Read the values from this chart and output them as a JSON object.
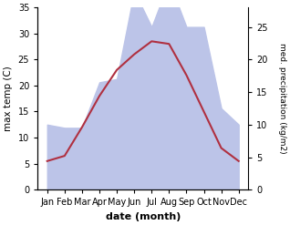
{
  "months": [
    "Jan",
    "Feb",
    "Mar",
    "Apr",
    "May",
    "Jun",
    "Jul",
    "Aug",
    "Sep",
    "Oct",
    "Nov",
    "Dec"
  ],
  "month_positions": [
    0,
    1,
    2,
    3,
    4,
    5,
    6,
    7,
    8,
    9,
    10,
    11
  ],
  "max_temp": [
    5.5,
    6.5,
    12.0,
    18.0,
    23.0,
    26.0,
    28.5,
    28.0,
    22.0,
    15.0,
    8.0,
    5.5
  ],
  "precipitation": [
    10.0,
    9.5,
    9.5,
    16.5,
    17.0,
    30.5,
    25.0,
    32.0,
    25.0,
    25.0,
    12.5,
    10.0
  ],
  "temp_color": "#b03040",
  "precip_fill_color": "#bcc4e8",
  "temp_ylim": [
    0,
    35
  ],
  "precip_ylim": [
    0,
    28
  ],
  "ylabel_left": "max temp (C)",
  "ylabel_right": "med. precipitation (kg/m2)",
  "xlabel": "date (month)",
  "background_color": "#ffffff",
  "right_yticks": [
    0,
    5,
    10,
    15,
    20,
    25
  ],
  "left_yticks": [
    0,
    5,
    10,
    15,
    20,
    25,
    30,
    35
  ]
}
